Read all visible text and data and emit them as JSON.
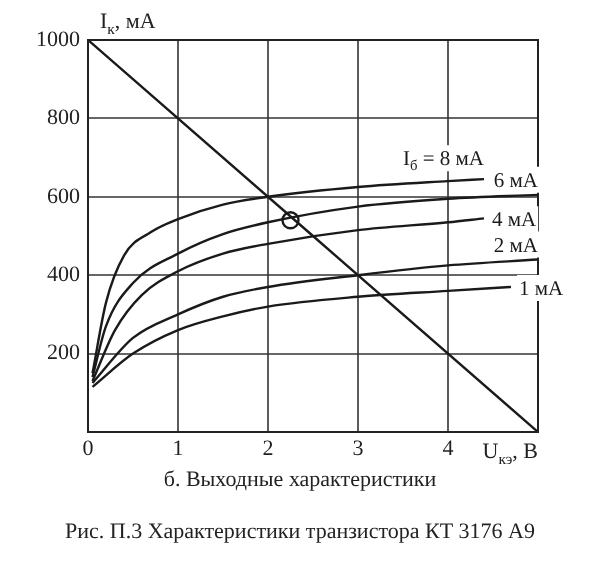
{
  "chart_data": {
    "type": "line",
    "subtitle": "б. Выходные характеристики",
    "xlabel": "U$_{кэ}$, В",
    "ylabel": "I$_{к}$, мА",
    "xlim": [
      0,
      5
    ],
    "ylim": [
      0,
      1000
    ],
    "xticks": [
      0,
      1,
      2,
      3,
      4
    ],
    "yticks": [
      {
        "value": 0,
        "label": null
      },
      200,
      400,
      600,
      800,
      1000
    ],
    "grid": true,
    "legend": false,
    "marker": "none",
    "series": [
      {
        "name": "I$_{б}$ = 8 мА",
        "color": "#1a1a1a",
        "x": [
          0.05,
          0.2,
          0.4,
          0.7,
          1,
          1.5,
          2,
          3,
          4,
          4.4
        ],
        "values": [
          150,
          330,
          450,
          510,
          543,
          580,
          600,
          625,
          640,
          645
        ]
      },
      {
        "name": "6 мА",
        "color": "#1a1a1a",
        "x": [
          0.05,
          0.2,
          0.5,
          1,
          1.5,
          2,
          3,
          4,
          5
        ],
        "values": [
          140,
          270,
          380,
          455,
          505,
          535,
          575,
          595,
          605
        ]
      },
      {
        "name": "4 мА",
        "color": "#1a1a1a",
        "x": [
          0.05,
          0.3,
          0.6,
          1,
          1.5,
          2,
          3,
          4,
          4.4
        ],
        "values": [
          130,
          260,
          350,
          410,
          455,
          480,
          515,
          535,
          545
        ]
      },
      {
        "name": "2 мА",
        "color": "#1a1a1a",
        "x": [
          0.05,
          0.5,
          1,
          1.5,
          2,
          3,
          4,
          5
        ],
        "values": [
          125,
          240,
          300,
          345,
          370,
          400,
          425,
          440
        ]
      },
      {
        "name": "1 мА",
        "color": "#1a1a1a",
        "x": [
          0.05,
          0.5,
          1,
          1.5,
          2,
          3,
          4,
          4.7
        ],
        "values": [
          115,
          200,
          260,
          295,
          320,
          345,
          360,
          370
        ]
      },
      {
        "color": "#1a1a1a",
        "x": [
          0,
          5
        ],
        "values": [
          1000,
          0
        ]
      },
      {
        "type": "scatter",
        "marker": "circle",
        "color": "#1a1a1a",
        "x": [
          2.25
        ],
        "values": [
          540
        ]
      }
    ],
    "annotations": [
      "Рис. П.3  Характеристики транзистора КТ 3176 А9"
    ]
  }
}
